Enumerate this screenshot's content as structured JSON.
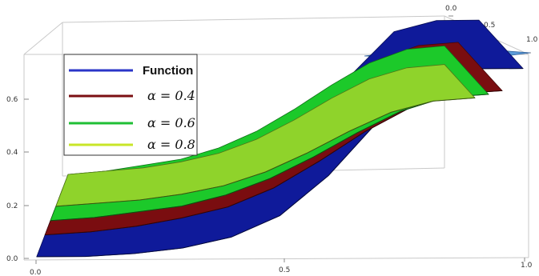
{
  "chart_data": {
    "type": "surface",
    "view": "3d",
    "x_ticks": [
      "0.0",
      "0.5",
      "1.0"
    ],
    "y_ticks": [
      "0.0",
      "0.5",
      "1.0"
    ],
    "z_ticks": [
      "0.0",
      "0.2",
      "0.4",
      "0.6"
    ],
    "xlim": [
      0,
      1
    ],
    "ylim": [
      0,
      1
    ],
    "zlim": [
      0,
      0.75
    ],
    "grid": false,
    "legend": {
      "placement": "top-left",
      "entries": [
        {
          "label": "Function",
          "color": "#2a35c8"
        },
        {
          "label": "α = 0.4",
          "color": "#7b0f12"
        },
        {
          "label": "α = 0.6",
          "color": "#1fbf35"
        },
        {
          "label": "α = 0.8",
          "color": "#c8e628"
        }
      ]
    },
    "series": [
      {
        "name": "Function",
        "color": "#0f1a9a",
        "x": [
          0,
          0.1,
          0.2,
          0.3,
          0.4,
          0.5,
          0.6,
          0.7,
          0.8,
          0.9,
          1.0
        ],
        "z_near": [
          0.0,
          0.0,
          0.01,
          0.03,
          0.07,
          0.15,
          0.3,
          0.5,
          0.66,
          0.7,
          0.7
        ],
        "z_far": [
          0.0,
          0.0,
          0.01,
          0.03,
          0.07,
          0.15,
          0.3,
          0.5,
          0.66,
          0.7,
          0.7
        ]
      },
      {
        "name": "α = 0.4",
        "color": "#7a0d10",
        "x": [
          0,
          0.1,
          0.2,
          0.3,
          0.4,
          0.5,
          0.6,
          0.7,
          0.8,
          0.9,
          1.0
        ],
        "z_near": [
          0.0,
          0.01,
          0.03,
          0.06,
          0.1,
          0.17,
          0.27,
          0.38,
          0.47,
          0.52,
          0.53
        ],
        "z_far": [
          0.0,
          0.01,
          0.03,
          0.06,
          0.1,
          0.17,
          0.27,
          0.38,
          0.47,
          0.52,
          0.53
        ]
      },
      {
        "name": "α = 0.6",
        "color": "#1cc92a",
        "x": [
          0,
          0.1,
          0.2,
          0.3,
          0.4,
          0.5,
          0.6,
          0.7,
          0.8,
          0.9,
          1.0
        ],
        "z_near": [
          0.0,
          0.01,
          0.03,
          0.05,
          0.09,
          0.15,
          0.23,
          0.32,
          0.4,
          0.45,
          0.46
        ],
        "z_far": [
          0.0,
          0.01,
          0.03,
          0.05,
          0.09,
          0.15,
          0.23,
          0.32,
          0.4,
          0.45,
          0.46
        ]
      },
      {
        "name": "α = 0.8",
        "color": "#8fd32b",
        "x": [
          0,
          0.1,
          0.2,
          0.3,
          0.4,
          0.5,
          0.6,
          0.7,
          0.8,
          0.9,
          1.0
        ],
        "z_near": [
          0.0,
          0.01,
          0.02,
          0.04,
          0.07,
          0.12,
          0.19,
          0.27,
          0.34,
          0.38,
          0.39
        ],
        "z_far": [
          0.0,
          0.01,
          0.02,
          0.04,
          0.07,
          0.12,
          0.19,
          0.27,
          0.34,
          0.38,
          0.39
        ]
      }
    ]
  }
}
